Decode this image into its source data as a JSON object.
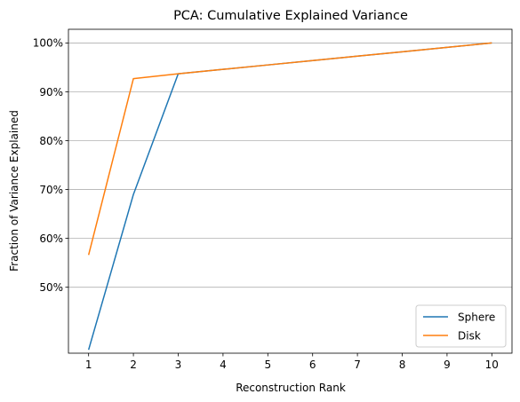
{
  "chart_data": {
    "type": "line",
    "title": "PCA: Cumulative Explained Variance",
    "xlabel": "Reconstruction Rank",
    "ylabel": "Fraction of Variance Explained",
    "x": [
      1,
      2,
      3,
      4,
      5,
      6,
      7,
      8,
      9,
      10
    ],
    "xlim": [
      0.55,
      10.45
    ],
    "ylim": [
      0.365,
      1.028
    ],
    "y_ticks": [
      0.5,
      0.6,
      0.7,
      0.8,
      0.9,
      1.0
    ],
    "y_tick_labels": [
      "50%",
      "60%",
      "70%",
      "80%",
      "90%",
      "100%"
    ],
    "x_tick_labels": [
      "1",
      "2",
      "3",
      "4",
      "5",
      "6",
      "7",
      "8",
      "9",
      "10"
    ],
    "grid": "y-major",
    "legend_position": "lower-right",
    "series": [
      {
        "name": "Sphere",
        "color": "#1f77b4",
        "values": [
          0.372,
          0.69,
          0.937,
          0.946,
          0.955,
          0.964,
          0.973,
          0.982,
          0.991,
          1.0
        ]
      },
      {
        "name": "Disk",
        "color": "#ff7f0e",
        "values": [
          0.566,
          0.927,
          0.937,
          0.946,
          0.955,
          0.964,
          0.973,
          0.982,
          0.991,
          1.0
        ]
      }
    ]
  }
}
